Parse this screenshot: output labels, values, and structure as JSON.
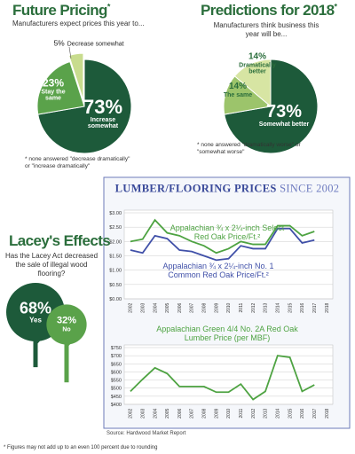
{
  "chart_data": [
    {
      "type": "pie",
      "title": "Future Pricing",
      "title_note": "*",
      "subtitle": "Manufacturers expect prices this year to...",
      "categories": [
        "Increase somewhat",
        "Stay the same",
        "Decrease somewhat"
      ],
      "values": [
        73,
        23,
        5
      ],
      "value_labels": [
        "73%",
        "23%",
        "5%"
      ],
      "colors": [
        "#1d5a3a",
        "#5aa24a",
        "#c8dc8e"
      ],
      "explode": [
        false,
        false,
        true
      ],
      "note": "* none answered \"decrease dramatically\" or \"increase dramatically\""
    },
    {
      "type": "pie",
      "title": "Predictions for 2018",
      "title_note": "*",
      "subtitle": "Manufacturers think business this year will be...",
      "categories": [
        "Somewhat better",
        "The same",
        "Dramatically better"
      ],
      "values": [
        73,
        14,
        14
      ],
      "value_labels": [
        "73%",
        "14%",
        "14%"
      ],
      "colors": [
        "#1d5a3a",
        "#9cc46b",
        "#d7e5a3"
      ],
      "explode": [
        false,
        false,
        false
      ],
      "note": "* none answered \"dramatically worse\" or \"somewhat worse\""
    },
    {
      "type": "pictogram",
      "title": "Lacey's Effects",
      "subtitle": "Has the Lacey Act decreased the sale of illegal wood flooring?",
      "categories": [
        "Yes",
        "No"
      ],
      "values": [
        68,
        32
      ],
      "value_labels": [
        "68%",
        "32%"
      ],
      "colors": [
        "#1d5a3a",
        "#5aa24a"
      ]
    },
    {
      "type": "line",
      "categories": [
        "2002",
        "2003",
        "2004",
        "2005",
        "2006",
        "2007",
        "2008",
        "2009",
        "2010",
        "2011",
        "2012",
        "2013",
        "2014",
        "2015",
        "2016",
        "2017",
        "2018"
      ],
      "series": [
        {
          "name": "Appalachian ¾ x 2¼-inch Select Red Oak Price/Ft.²",
          "color": "#4ea342",
          "values": [
            2.0,
            2.08,
            2.75,
            2.3,
            2.2,
            2.0,
            1.85,
            1.6,
            1.75,
            2.0,
            1.9,
            1.9,
            2.55,
            2.55,
            2.2,
            2.35,
            null
          ]
        },
        {
          "name": "Appalachian ¾ x 2¼-inch No. 1 Common Red Oak Price/Ft.²",
          "color": "#4050a8",
          "values": [
            1.7,
            1.6,
            2.2,
            2.1,
            1.7,
            1.65,
            1.5,
            1.35,
            1.4,
            1.85,
            1.75,
            1.75,
            2.45,
            2.45,
            1.95,
            2.05,
            null
          ]
        }
      ],
      "ylim": [
        0,
        3
      ],
      "yticks": [
        {
          "value": 0,
          "label": "$0.00"
        },
        {
          "value": 0.5,
          "label": "$0.50"
        },
        {
          "value": 1,
          "label": "$1.00"
        },
        {
          "value": 1.5,
          "label": "$1.50"
        },
        {
          "value": 2,
          "label": "$2.00"
        },
        {
          "value": 2.5,
          "label": "$2.50"
        },
        {
          "value": 3,
          "label": "$3.00"
        }
      ],
      "grid": true
    },
    {
      "type": "line",
      "title": "Appalachian Green 4/4 No. 2A Red Oak Lumber Price (per MBF)",
      "categories": [
        "2002",
        "2003",
        "2004",
        "2005",
        "2006",
        "2007",
        "2008",
        "2009",
        "2010",
        "2011",
        "2012",
        "2013",
        "2014",
        "2015",
        "2016",
        "2017",
        "2018"
      ],
      "values": [
        480,
        555,
        625,
        590,
        510,
        510,
        510,
        475,
        475,
        525,
        430,
        480,
        700,
        690,
        480,
        520,
        null
      ],
      "color": "#4ea342",
      "ylim": [
        400,
        750
      ],
      "yticks": [
        {
          "value": 400,
          "label": "$400"
        },
        {
          "value": 450,
          "label": "$450"
        },
        {
          "value": 500,
          "label": "$500"
        },
        {
          "value": 550,
          "label": "$550"
        },
        {
          "value": 600,
          "label": "$600"
        },
        {
          "value": 650,
          "label": "$650"
        },
        {
          "value": 700,
          "label": "$700"
        },
        {
          "value": 750,
          "label": "$750"
        }
      ],
      "grid": true
    }
  ],
  "box": {
    "title": "LUMBER/FLOORING PRICES",
    "title_suffix": "SINCE 2002"
  },
  "source": "Source: Hardwood Market Report",
  "footnote": "* Figures may not add up to an even 100 percent due to rounding"
}
